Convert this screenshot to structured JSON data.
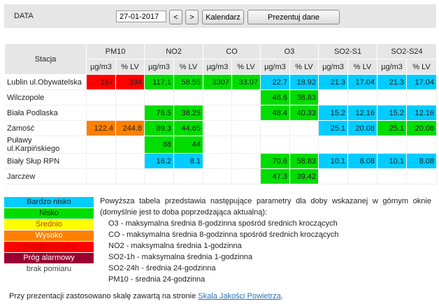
{
  "toolbar": {
    "date_label": "DATA",
    "date_value": "27-01-2017",
    "prev_label": "<",
    "next_label": ">",
    "calendar_label": "Kalendarz",
    "present_label": "Prezentuj dane"
  },
  "colors": {
    "very_low": "#00ccff",
    "low": "#00dd00",
    "medium": "#ffff00",
    "high": "#ff8000",
    "very_high": "#ff0000",
    "alarm": "#990033",
    "no_data": "#ffffff",
    "header": "#e6e6e6"
  },
  "table": {
    "station_header": "Stacja",
    "pollutants": [
      "PM10",
      "NO2",
      "CO",
      "O3",
      "SO2-S1",
      "SO2-S24"
    ],
    "units": [
      "µg/m3",
      "% LV",
      "µg/m3",
      "% LV",
      "µg/m3",
      "% LV",
      "µg/m3",
      "% LV",
      "µg/m3",
      "% LV",
      "µg/m3",
      "% LV"
    ],
    "rows": [
      {
        "station": "Lublin ul.Obywatelska",
        "cells": [
          {
            "v": "167",
            "c": "very_high"
          },
          {
            "v": "334",
            "c": "very_high"
          },
          {
            "v": "117.1",
            "c": "low"
          },
          {
            "v": "58.55",
            "c": "low"
          },
          {
            "v": "3307",
            "c": "low"
          },
          {
            "v": "33.07",
            "c": "low"
          },
          {
            "v": "22.7",
            "c": "very_low"
          },
          {
            "v": "18.92",
            "c": "very_low"
          },
          {
            "v": "21.3",
            "c": "very_low"
          },
          {
            "v": "17.04",
            "c": "very_low"
          },
          {
            "v": "21.3",
            "c": "very_low"
          },
          {
            "v": "17.04",
            "c": "very_low"
          }
        ]
      },
      {
        "station": "Wilczopole",
        "cells": [
          {
            "v": "",
            "c": "no_data"
          },
          {
            "v": "",
            "c": "no_data"
          },
          {
            "v": "",
            "c": "no_data"
          },
          {
            "v": "",
            "c": "no_data"
          },
          {
            "v": "",
            "c": "no_data"
          },
          {
            "v": "",
            "c": "no_data"
          },
          {
            "v": "46.6",
            "c": "low"
          },
          {
            "v": "38.83",
            "c": "low"
          },
          {
            "v": "",
            "c": "no_data"
          },
          {
            "v": "",
            "c": "no_data"
          },
          {
            "v": "",
            "c": "no_data"
          },
          {
            "v": "",
            "c": "no_data"
          }
        ]
      },
      {
        "station": "Biała Podlaska",
        "cells": [
          {
            "v": "",
            "c": "no_data"
          },
          {
            "v": "",
            "c": "no_data"
          },
          {
            "v": "76.5",
            "c": "low"
          },
          {
            "v": "38.25",
            "c": "low"
          },
          {
            "v": "",
            "c": "no_data"
          },
          {
            "v": "",
            "c": "no_data"
          },
          {
            "v": "48.4",
            "c": "low"
          },
          {
            "v": "40.33",
            "c": "low"
          },
          {
            "v": "15.2",
            "c": "very_low"
          },
          {
            "v": "12.16",
            "c": "very_low"
          },
          {
            "v": "15.2",
            "c": "very_low"
          },
          {
            "v": "12.16",
            "c": "very_low"
          }
        ]
      },
      {
        "station": "Zamość",
        "cells": [
          {
            "v": "122.4",
            "c": "high"
          },
          {
            "v": "244.8",
            "c": "high"
          },
          {
            "v": "89.3",
            "c": "low"
          },
          {
            "v": "44.65",
            "c": "low"
          },
          {
            "v": "",
            "c": "no_data"
          },
          {
            "v": "",
            "c": "no_data"
          },
          {
            "v": "",
            "c": "no_data"
          },
          {
            "v": "",
            "c": "no_data"
          },
          {
            "v": "25.1",
            "c": "very_low"
          },
          {
            "v": "20.08",
            "c": "very_low"
          },
          {
            "v": "25.1",
            "c": "low"
          },
          {
            "v": "20.08",
            "c": "low"
          }
        ]
      },
      {
        "station": "Puławy ul.Karpińskiego",
        "cells": [
          {
            "v": "",
            "c": "no_data"
          },
          {
            "v": "",
            "c": "no_data"
          },
          {
            "v": "88",
            "c": "low"
          },
          {
            "v": "44",
            "c": "low"
          },
          {
            "v": "",
            "c": "no_data"
          },
          {
            "v": "",
            "c": "no_data"
          },
          {
            "v": "",
            "c": "no_data"
          },
          {
            "v": "",
            "c": "no_data"
          },
          {
            "v": "",
            "c": "no_data"
          },
          {
            "v": "",
            "c": "no_data"
          },
          {
            "v": "",
            "c": "no_data"
          },
          {
            "v": "",
            "c": "no_data"
          }
        ]
      },
      {
        "station": "Biały Słup RPN",
        "cells": [
          {
            "v": "",
            "c": "no_data"
          },
          {
            "v": "",
            "c": "no_data"
          },
          {
            "v": "16.2",
            "c": "very_low"
          },
          {
            "v": "8.1",
            "c": "very_low"
          },
          {
            "v": "",
            "c": "no_data"
          },
          {
            "v": "",
            "c": "no_data"
          },
          {
            "v": "70.6",
            "c": "low"
          },
          {
            "v": "58.83",
            "c": "low"
          },
          {
            "v": "10.1",
            "c": "very_low"
          },
          {
            "v": "8.08",
            "c": "very_low"
          },
          {
            "v": "10.1",
            "c": "very_low"
          },
          {
            "v": "8.08",
            "c": "very_low"
          }
        ]
      },
      {
        "station": "Jarczew",
        "cells": [
          {
            "v": "",
            "c": "no_data"
          },
          {
            "v": "",
            "c": "no_data"
          },
          {
            "v": "",
            "c": "no_data"
          },
          {
            "v": "",
            "c": "no_data"
          },
          {
            "v": "",
            "c": "no_data"
          },
          {
            "v": "",
            "c": "no_data"
          },
          {
            "v": "47.3",
            "c": "low"
          },
          {
            "v": "39.42",
            "c": "low"
          },
          {
            "v": "",
            "c": "no_data"
          },
          {
            "v": "",
            "c": "no_data"
          },
          {
            "v": "",
            "c": "no_data"
          },
          {
            "v": "",
            "c": "no_data"
          }
        ]
      }
    ]
  },
  "legend": [
    {
      "label": "Bardzo nisko",
      "c": "very_low",
      "text_color": "#222222"
    },
    {
      "label": "Nisko",
      "c": "low",
      "text_color": "#222222"
    },
    {
      "label": "Średnio",
      "c": "medium",
      "text_color": "#b04000"
    },
    {
      "label": "Wysoko",
      "c": "high",
      "text_color": "#ffffff"
    },
    {
      "label": "Bardzo wysoko",
      "c": "very_high",
      "text_color": "#cc0000"
    },
    {
      "label": "Próg alarmowy",
      "c": "alarm",
      "text_color": "#ffffff"
    },
    {
      "label": "brak pomiaru",
      "c": "no_data",
      "text_color": "#444444"
    }
  ],
  "description": {
    "intro": "Powyższa tabela przedstawia następujące parametry dla doby wskazanej w górnym oknie (domyślnie jest to doba poprzedzająca aktualną):",
    "items": [
      "O3 - maksymalna średnia 8-godzinna spośród średnich kroczących",
      "CO - maksymalna średnia 8-godzinna spośród średnich kroczących",
      "NO2 - maksymalna średnia 1-godzinna",
      "SO2-1h - maksymalna średnia 1-godzinna",
      "SO2-24h - średnia 24-godzinna",
      "PM10 - średnia 24-godzinna"
    ]
  },
  "footer": {
    "text": "Przy prezentacji zastosowano skalę zawartą na stronie ",
    "link": "Skala Jakości Powietrza",
    "end": "."
  }
}
